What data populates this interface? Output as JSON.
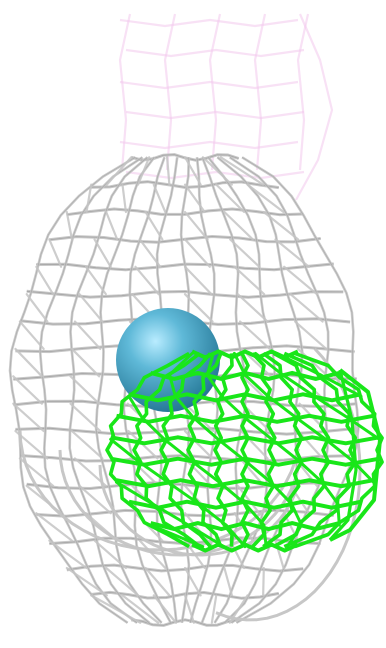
{
  "scene": {
    "background": "#ffffff",
    "meshes": [
      {
        "name": "pink-mesh",
        "color": "#f2c8ec",
        "opacity": 0.55
      },
      {
        "name": "gray-mesh",
        "color": "#c4c4c4",
        "opacity": 1
      },
      {
        "name": "green-mesh",
        "color": "#19e619",
        "opacity": 1
      }
    ],
    "sphere": {
      "name": "ion-sphere",
      "color": "#3a9fc0"
    }
  }
}
